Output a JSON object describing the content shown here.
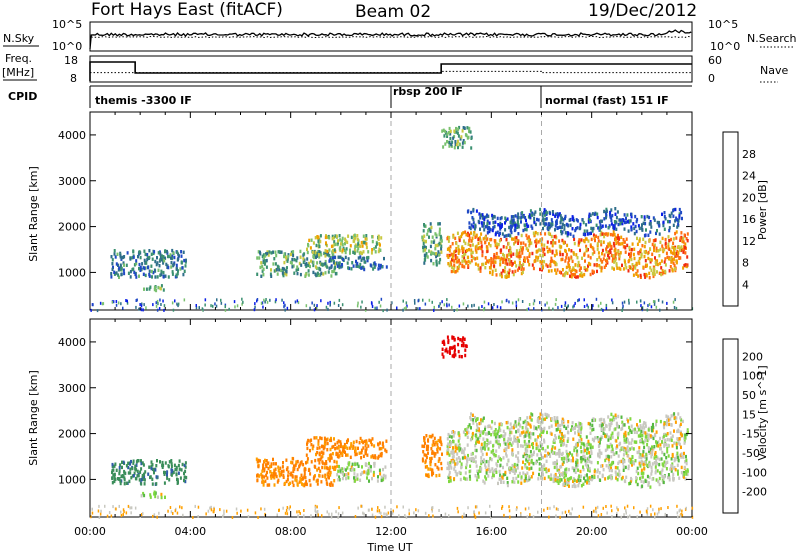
{
  "header": {
    "title": "Fort Hays East (fitACF)",
    "beam": "Beam 02",
    "date": "19/Dec/2012"
  },
  "noise_panel": {
    "left_label": "N.Sky",
    "right_label": "N.Search",
    "left_ticks": [
      "10^5",
      "10^0"
    ],
    "right_ticks": [
      "10^5",
      "10^0"
    ]
  },
  "freq_panel": {
    "left_label_line1": "Freq.",
    "left_label_line2": "[MHz]",
    "left_ticks": [
      "18",
      "8"
    ],
    "right_label": "Nave",
    "right_ticks": [
      "60",
      "0"
    ],
    "freq_steps": [
      {
        "from": 0.0,
        "to": 0.1,
        "value": 17
      },
      {
        "from": 0.1,
        "to": 1.8,
        "value": 17
      },
      {
        "from": 1.8,
        "to": 14.0,
        "value": 11.5
      },
      {
        "from": 14.0,
        "to": 24.0,
        "value": 16
      }
    ],
    "nave_steps": [
      {
        "from": 0.0,
        "to": 14.0,
        "value": 22
      },
      {
        "from": 14.0,
        "to": 18.0,
        "value": 26
      },
      {
        "from": 18.0,
        "to": 24.0,
        "value": 22
      }
    ]
  },
  "cpid": {
    "label": "CPID",
    "segments": [
      {
        "start": 0.0,
        "label": "themis -3300 IF"
      },
      {
        "start": 12.0,
        "label": "rbsp 200 IF"
      },
      {
        "start": 18.0,
        "label": "normal (fast) 151 IF"
      }
    ]
  },
  "chart_data": [
    {
      "type": "heatmap",
      "quantity": "Power",
      "ylabel": "Slant Range [km]",
      "xlabel": "",
      "xlim": [
        0,
        24
      ],
      "ylim": [
        180,
        4500
      ],
      "y_ticks": [
        1000,
        2000,
        3000,
        4000
      ],
      "colorbar": {
        "label": "Power [dB]",
        "ticks": [
          "4",
          "8",
          "12",
          "16",
          "20",
          "24",
          "28"
        ],
        "colors": [
          "#0a1fe6",
          "#1f49c4",
          "#2e6e8a",
          "#3a9070",
          "#79c06e",
          "#c8c840",
          "#f0a000",
          "#ff6e10",
          "#f02a10",
          "#e61010"
        ]
      },
      "regions": [
        {
          "t0": 0.8,
          "t1": 3.8,
          "r0": 930,
          "r1": 1520,
          "level": 9
        },
        {
          "t0": 2.0,
          "t1": 3.0,
          "r0": 640,
          "r1": 760,
          "level": 14
        },
        {
          "t0": 6.6,
          "t1": 9.8,
          "r0": 950,
          "r1": 1500,
          "level": 12
        },
        {
          "t0": 8.6,
          "t1": 11.6,
          "r0": 1450,
          "r1": 1850,
          "level": 16
        },
        {
          "t0": 9.5,
          "t1": 11.8,
          "r0": 1100,
          "r1": 1380,
          "level": 8
        },
        {
          "t0": 13.2,
          "t1": 14.0,
          "r0": 1200,
          "r1": 2100,
          "level": 12
        },
        {
          "t0": 14.2,
          "t1": 23.8,
          "r0": 1000,
          "r1": 1850,
          "level": 22
        },
        {
          "t0": 15.0,
          "t1": 23.6,
          "r0": 1900,
          "r1": 2350,
          "level": 6
        },
        {
          "t0": 14.0,
          "t1": 15.2,
          "r0": 3750,
          "r1": 4200,
          "level": 12
        }
      ]
    },
    {
      "type": "heatmap",
      "quantity": "Velocity",
      "ylabel": "Slant Range [km]",
      "xlabel": "Time UT",
      "xlim": [
        0,
        24
      ],
      "ylim": [
        180,
        4500
      ],
      "x_ticks": [
        "00:00",
        "04:00",
        "08:00",
        "12:00",
        "16:00",
        "20:00",
        "00:00"
      ],
      "y_ticks": [
        1000,
        2000,
        3000,
        4000
      ],
      "colorbar": {
        "label": "Velocity [m s^-1]",
        "ticks": [
          "200",
          "100",
          "50",
          "15",
          "-15",
          "-50",
          "-100",
          "-200"
        ],
        "colors": [
          "#1a2ab8",
          "#2f5aa8",
          "#3b8e5a",
          "#55b840",
          "#80d840",
          "#c8c8c0",
          "#ffa000",
          "#ff8000",
          "#ff4000",
          "#e60000"
        ]
      },
      "regions": [
        {
          "t0": 0.8,
          "t1": 3.8,
          "r0": 930,
          "r1": 1450,
          "level": 60
        },
        {
          "t0": 2.0,
          "t1": 3.0,
          "r0": 640,
          "r1": 760,
          "level": 0
        },
        {
          "t0": 6.6,
          "t1": 9.8,
          "r0": 900,
          "r1": 1500,
          "level": -60
        },
        {
          "t0": 8.6,
          "t1": 11.8,
          "r0": 1500,
          "r1": 1950,
          "level": -60
        },
        {
          "t0": 9.8,
          "t1": 11.8,
          "r0": 1000,
          "r1": 1400,
          "level": 0
        },
        {
          "t0": 13.2,
          "t1": 14.0,
          "r0": 1100,
          "r1": 2000,
          "level": -60
        },
        {
          "t0": 14.2,
          "t1": 23.8,
          "r0": 950,
          "r1": 2050,
          "level": 0
        },
        {
          "t0": 14.0,
          "t1": 15.0,
          "r0": 3700,
          "r1": 4150,
          "level": -220
        },
        {
          "t0": 15.0,
          "t1": 23.6,
          "r0": 2050,
          "r1": 2400,
          "level": 0
        }
      ]
    }
  ]
}
